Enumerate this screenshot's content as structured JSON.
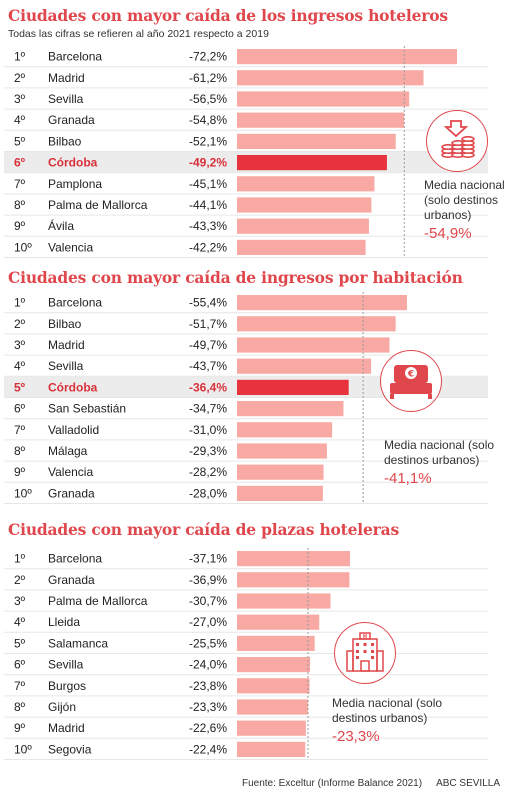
{
  "subtitle": "Todas las cifras se refieren al año 2021 respecto a 2019",
  "footer": {
    "source": "Fuente: Exceltur (Informe Balance 2021)",
    "publisher": "ABC SEVILLA"
  },
  "colors": {
    "bar": "#f8a9a3",
    "highlight": "#e8323d",
    "title": "#e0474c",
    "row_highlight_bg": "#ececec"
  },
  "icons": [
    "money-stack-down-icon",
    "hotel-bed-euro-icon",
    "hotel-building-icon"
  ],
  "chart_data": [
    {
      "type": "bar",
      "title": "Ciudades con mayor caída de los ingresos hoteleros",
      "ranks": [
        "1º",
        "2º",
        "3º",
        "4º",
        "5º",
        "6º",
        "7º",
        "8º",
        "9º",
        "10º"
      ],
      "categories": [
        "Barcelona",
        "Madrid",
        "Sevilla",
        "Granada",
        "Bilbao",
        "Córdoba",
        "Pamplona",
        "Palma de Mallorca",
        "Ávila",
        "Valencia"
      ],
      "values": [
        -72.2,
        -61.2,
        -56.5,
        -54.8,
        -52.1,
        -49.2,
        -45.1,
        -44.1,
        -43.3,
        -42.2
      ],
      "value_labels": [
        "-72,2%",
        "-61,2%",
        "-56,5%",
        "-54,8%",
        "-52,1%",
        "-49,2%",
        "-45,1%",
        "-44,1%",
        "-43,3%",
        "-42,2%"
      ],
      "highlight": "Córdoba",
      "reference": {
        "label": "Media nacional (solo destinos urbanos)",
        "value": -54.9,
        "value_label": "-54,9%"
      }
    },
    {
      "type": "bar",
      "title": "Ciudades con mayor caída de ingresos por habitación",
      "ranks": [
        "1º",
        "2º",
        "3º",
        "4º",
        "5º",
        "6º",
        "7º",
        "8º",
        "9º",
        "10º"
      ],
      "categories": [
        "Barcelona",
        "Bilbao",
        "Madrid",
        "Sevilla",
        "Córdoba",
        "San Sebastián",
        "Valladolid",
        "Málaga",
        "Valencia",
        "Granada"
      ],
      "values": [
        -55.4,
        -51.7,
        -49.7,
        -43.7,
        -36.4,
        -34.7,
        -31.0,
        -29.3,
        -28.2,
        -28.0
      ],
      "value_labels": [
        "-55,4%",
        "-51,7%",
        "-49,7%",
        "-43,7%",
        "-36,4%",
        "-34,7%",
        "-31,0%",
        "-29,3%",
        "-28,2%",
        "-28,0%"
      ],
      "highlight": "Córdoba",
      "reference": {
        "label": "Media nacional (solo destinos urbanos)",
        "value": -41.1,
        "value_label": "-41,1%"
      }
    },
    {
      "type": "bar",
      "title": "Ciudades con mayor caída de plazas hoteleras",
      "ranks": [
        "1º",
        "2º",
        "3º",
        "4º",
        "5º",
        "6º",
        "7º",
        "8º",
        "9º",
        "10º"
      ],
      "categories": [
        "Barcelona",
        "Granada",
        "Palma de Mallorca",
        "Lleida",
        "Salamanca",
        "Sevilla",
        "Burgos",
        "Gijón",
        "Madrid",
        "Segovia"
      ],
      "values": [
        -37.1,
        -36.9,
        -30.7,
        -27.0,
        -25.5,
        -24.0,
        -23.8,
        -23.3,
        -22.6,
        -22.4
      ],
      "value_labels": [
        "-37,1%",
        "-36,9%",
        "-30,7%",
        "-27,0%",
        "-25,5%",
        "-24,0%",
        "-23,8%",
        "-23,3%",
        "-22,6%",
        "-22,4%"
      ],
      "highlight": "",
      "reference": {
        "label": "Media nacional (solo destinos urbanos)",
        "value": -23.3,
        "value_label": "-23,3%"
      }
    }
  ]
}
